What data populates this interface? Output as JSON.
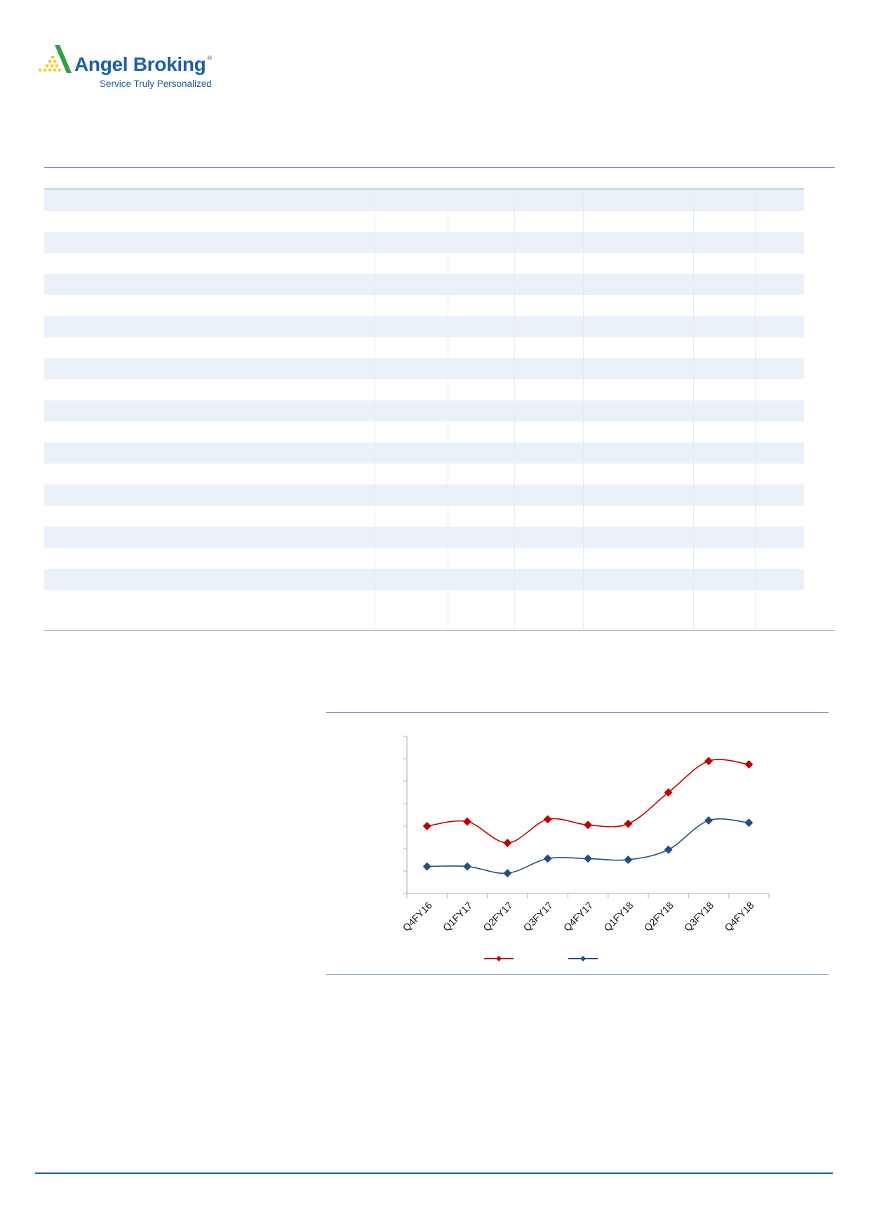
{
  "logo": {
    "name": "Angel Broking",
    "tagline": "Service Truly Personalized",
    "registered": "®",
    "colors": {
      "brand_blue": "#1f5fa5",
      "green": "#2aa44a",
      "yellow": "#f5c518"
    }
  },
  "table": {
    "shaded_rows": 10,
    "row_band_color": "#eaf1f8",
    "rule_color": "#4a6f9c"
  },
  "chart_data": {
    "type": "line",
    "title": "",
    "xlabel": "",
    "ylabel": "",
    "categories": [
      "Q4FY16",
      "Q1FY17",
      "Q2FY17",
      "Q3FY17",
      "Q4FY17",
      "Q1FY18",
      "Q2FY18",
      "Q3FY18",
      "Q4FY18"
    ],
    "ylim": [
      0,
      7
    ],
    "y_tick_count": 8,
    "y_tick_labels_shown": false,
    "grid": false,
    "smooth": true,
    "legend_placement": "bottom",
    "series": [
      {
        "color": "#c00000",
        "marker": "diamond",
        "values": [
          3.0,
          3.2,
          2.25,
          3.3,
          3.05,
          3.1,
          4.5,
          5.9,
          5.75
        ]
      },
      {
        "color": "#254e86",
        "marker": "diamond",
        "values": [
          1.2,
          1.2,
          0.9,
          1.55,
          1.55,
          1.5,
          1.95,
          3.25,
          3.15
        ]
      }
    ]
  }
}
